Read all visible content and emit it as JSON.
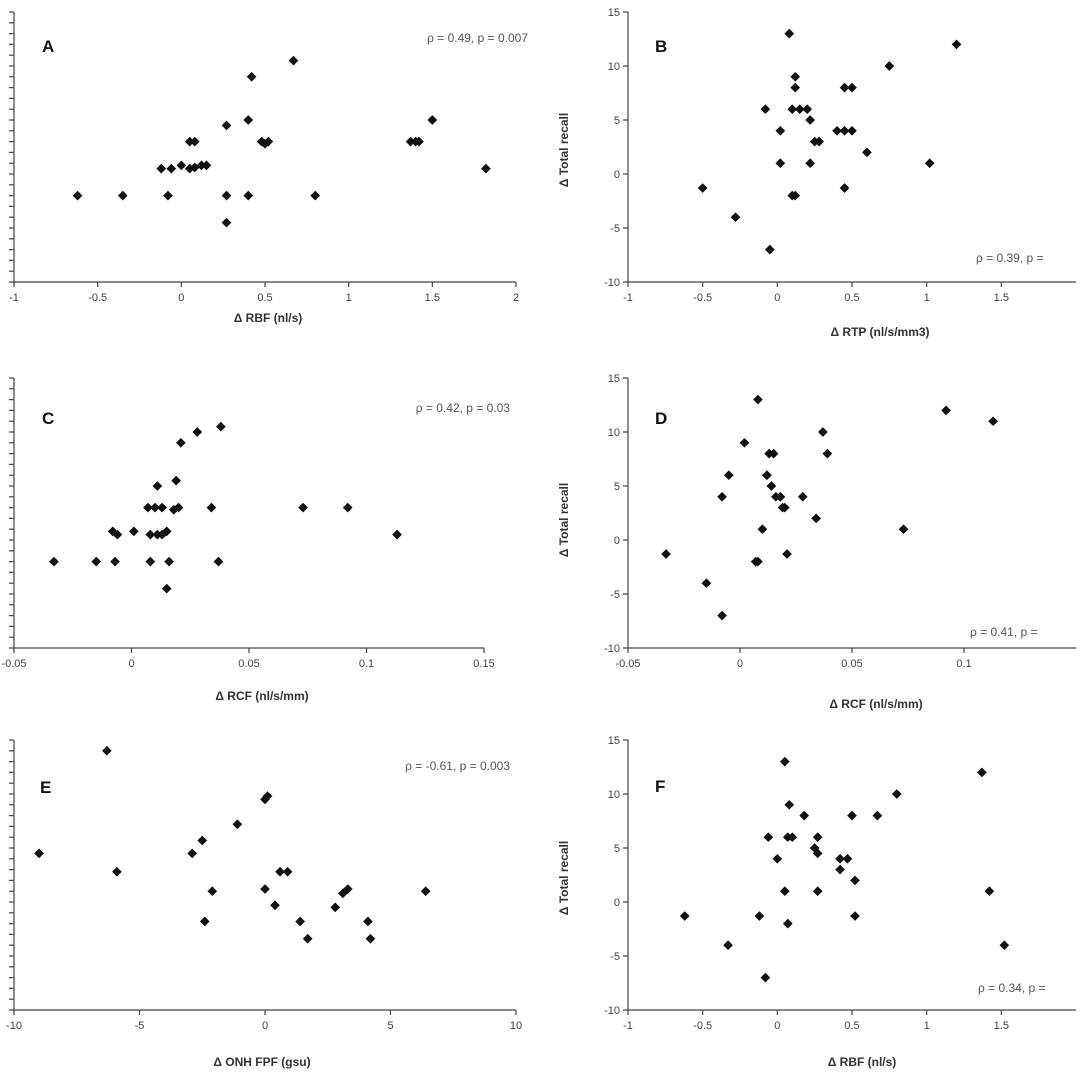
{
  "chart_data": [
    {
      "type": "scatter",
      "panel_label": "A",
      "annotation": "ρ = 0.49, p = 0.007",
      "xlabel": "Δ RBF (nl/s)",
      "ylabel": "",
      "xlim": [
        -1,
        2
      ],
      "ylim": [
        -10,
        15
      ],
      "xticks": [
        -1,
        -0.5,
        0,
        0.5,
        1,
        1.5,
        2
      ],
      "xtick_labels": [
        "-1",
        "-0.5",
        "0",
        "0.5",
        "1",
        "1.5",
        "2"
      ],
      "yticks": [
        -10,
        -9,
        -8,
        -7,
        -6,
        -5,
        -4,
        -3,
        -2,
        -1,
        0,
        1,
        2,
        3,
        4,
        5,
        6,
        7,
        8,
        9,
        10,
        11,
        12,
        13,
        14,
        15
      ],
      "ytick_labels": [],
      "x": [
        -0.62,
        -0.35,
        -0.08,
        0.27,
        0.4,
        0.8,
        0.27,
        -0.12,
        -0.06,
        0.0,
        0.05,
        0.08,
        0.12,
        0.15,
        0.05,
        0.08,
        0.27,
        0.4,
        0.42,
        0.48,
        0.5,
        0.52,
        0.67,
        1.37,
        1.4,
        1.42,
        1.5,
        1.82
      ],
      "y": [
        -2,
        -2,
        -2,
        -2,
        -2,
        -2,
        -4.5,
        0.5,
        0.5,
        0.8,
        0.5,
        0.6,
        0.8,
        0.8,
        3,
        3,
        4.5,
        5,
        9,
        3,
        2.8,
        3,
        10.5,
        3,
        3,
        3,
        5,
        0.5
      ]
    },
    {
      "type": "scatter",
      "panel_label": "B",
      "annotation": "ρ = 0.39, p = ",
      "xlabel": "Δ RTP (nl/s/mm3)",
      "ylabel": "Δ Total recall",
      "xlim": [
        -1,
        2
      ],
      "ylim": [
        -10,
        15
      ],
      "xticks": [
        -1,
        -0.5,
        0,
        0.5,
        1,
        1.5
      ],
      "xtick_labels": [
        "-1",
        "-0.5",
        "0",
        "0.5",
        "1",
        "1.5"
      ],
      "yticks": [
        -10,
        -5,
        0,
        5,
        10,
        15
      ],
      "ytick_labels": [
        "-10",
        "-5",
        "0",
        "5",
        "10",
        "15"
      ],
      "x": [
        -0.5,
        -0.28,
        -0.05,
        -0.08,
        0.02,
        0.02,
        0.1,
        0.12,
        0.12,
        0.12,
        0.15,
        0.1,
        0.2,
        0.22,
        0.22,
        0.25,
        0.28,
        0.4,
        0.45,
        0.5,
        0.45,
        0.45,
        0.5,
        0.6,
        0.75,
        1.02,
        1.2,
        0.08
      ],
      "y": [
        -1.3,
        -4,
        -7,
        6,
        4,
        1,
        -2,
        -2,
        9,
        8,
        6,
        6,
        6,
        5,
        1,
        3,
        3,
        4,
        4,
        4,
        8,
        -1.3,
        8,
        2,
        10,
        1,
        12,
        13
      ]
    },
    {
      "type": "scatter",
      "panel_label": "C",
      "annotation": "ρ = 0.42, p = 0.03",
      "xlabel": "Δ RCF (nl/s/mm)",
      "ylabel": "",
      "xlim": [
        -0.05,
        0.15
      ],
      "ylim": [
        -10,
        15
      ],
      "xticks": [
        -0.05,
        0,
        0.05,
        0.1,
        0.15
      ],
      "xtick_labels": [
        "-0.05",
        "0",
        "0.05",
        "0.1",
        "0.15"
      ],
      "yticks": [
        -10,
        -9,
        -8,
        -7,
        -6,
        -5,
        -4,
        -3,
        -2,
        -1,
        0,
        1,
        2,
        3,
        4,
        5,
        6,
        7,
        8,
        9,
        10,
        11,
        12,
        13,
        14,
        15
      ],
      "ytick_labels": [],
      "x": [
        -0.033,
        -0.015,
        -0.007,
        0.008,
        0.016,
        0.037,
        0.015,
        -0.008,
        -0.006,
        0.001,
        0.008,
        0.011,
        0.013,
        0.015,
        0.007,
        0.01,
        0.013,
        0.018,
        0.02,
        0.011,
        0.019,
        0.034,
        0.073,
        0.092,
        0.021,
        0.028,
        0.038,
        0.113
      ],
      "y": [
        -2,
        -2,
        -2,
        -2,
        -2,
        -2,
        -4.5,
        0.8,
        0.5,
        0.8,
        0.5,
        0.5,
        0.5,
        0.8,
        3,
        3,
        3,
        2.8,
        3,
        5,
        5.5,
        3,
        3,
        3,
        9,
        10,
        10.5,
        0.5
      ]
    },
    {
      "type": "scatter",
      "panel_label": "D",
      "annotation": "ρ = 0.41, p = ",
      "xlabel": "Δ RCF (nl/s/mm)",
      "ylabel": "Δ Total recall",
      "xlim": [
        -0.05,
        0.15
      ],
      "ylim": [
        -10,
        15
      ],
      "xticks": [
        -0.05,
        0,
        0.05,
        0.1
      ],
      "xtick_labels": [
        "-0.05",
        "0",
        "0.05",
        "0.1"
      ],
      "yticks": [
        -10,
        -5,
        0,
        5,
        10,
        15
      ],
      "ytick_labels": [
        "-10",
        "-5",
        "0",
        "5",
        "10",
        "15"
      ],
      "x": [
        -0.033,
        -0.015,
        -0.008,
        -0.008,
        -0.005,
        0.002,
        0.008,
        0.007,
        0.01,
        0.012,
        0.012,
        0.013,
        0.015,
        0.014,
        0.016,
        0.018,
        0.018,
        0.019,
        0.02,
        0.021,
        0.028,
        0.034,
        0.037,
        0.039,
        0.073,
        0.092,
        0.113,
        0.008
      ],
      "y": [
        -1.3,
        -4,
        -7,
        4,
        6,
        9,
        13,
        -2,
        1,
        6,
        6,
        8,
        8,
        5,
        4,
        4,
        4,
        3,
        3,
        -1.3,
        4,
        2,
        10,
        8,
        1,
        12,
        11,
        -2
      ]
    },
    {
      "type": "scatter",
      "panel_label": "E",
      "annotation": "ρ = -0.61, p = 0.003",
      "xlabel": "Δ ONH FPF (gsu)",
      "ylabel": "",
      "xlim": [
        -10,
        10
      ],
      "ylim": [
        -10,
        15
      ],
      "xticks": [
        -10,
        -5,
        0,
        5,
        10
      ],
      "xtick_labels": [
        "-10",
        "-5",
        "0",
        "5",
        "10"
      ],
      "yticks": [
        -10,
        -9,
        -8,
        -7,
        -6,
        -5,
        -4,
        -3,
        -2,
        -1,
        0,
        1,
        2,
        3,
        4,
        5,
        6,
        7,
        8,
        9,
        10,
        11,
        12,
        13,
        14,
        15
      ],
      "ytick_labels": [],
      "x": [
        -9,
        -6.3,
        -5.9,
        -2.9,
        -2.5,
        -2.1,
        -2.4,
        -1.1,
        0.0,
        0.1,
        0.0,
        0.6,
        0.9,
        0.4,
        1.4,
        1.7,
        2.8,
        3.1,
        3.3,
        4.1,
        4.2,
        6.4
      ],
      "y": [
        4.5,
        14,
        2.8,
        4.5,
        5.7,
        1,
        -1.8,
        7.2,
        9.5,
        9.8,
        1.2,
        2.8,
        2.8,
        -0.3,
        -1.8,
        -3.4,
        -0.5,
        0.8,
        1.2,
        -1.8,
        -3.4,
        1
      ]
    },
    {
      "type": "scatter",
      "panel_label": "F",
      "annotation": "ρ = 0.34, p = ",
      "xlabel": "Δ RBF (nl/s)",
      "ylabel": "Δ Total recall",
      "xlim": [
        -1,
        2
      ],
      "ylim": [
        -10,
        15
      ],
      "xticks": [
        -1,
        -0.5,
        0,
        0.5,
        1,
        1.5
      ],
      "xtick_labels": [
        "-1",
        "-0.5",
        "0",
        "0.5",
        "1",
        "1.5"
      ],
      "yticks": [
        -10,
        -5,
        0,
        5,
        10,
        15
      ],
      "ytick_labels": [
        "-10",
        "-5",
        "0",
        "5",
        "10",
        "15"
      ],
      "x": [
        -0.62,
        -0.33,
        -0.08,
        -0.12,
        -0.06,
        0.0,
        0.05,
        0.07,
        0.07,
        0.08,
        0.1,
        0.18,
        0.25,
        0.27,
        0.27,
        0.27,
        0.42,
        0.42,
        0.47,
        0.5,
        0.52,
        0.52,
        0.67,
        0.8,
        1.37,
        1.42,
        1.52,
        0.05
      ],
      "y": [
        -1.3,
        -4,
        -7,
        -1.3,
        6,
        4,
        1,
        -2,
        6,
        9,
        6,
        8,
        5,
        6,
        1,
        4.5,
        4,
        3,
        4,
        8,
        -1.3,
        2,
        8,
        10,
        12,
        1,
        -4,
        13
      ]
    }
  ]
}
